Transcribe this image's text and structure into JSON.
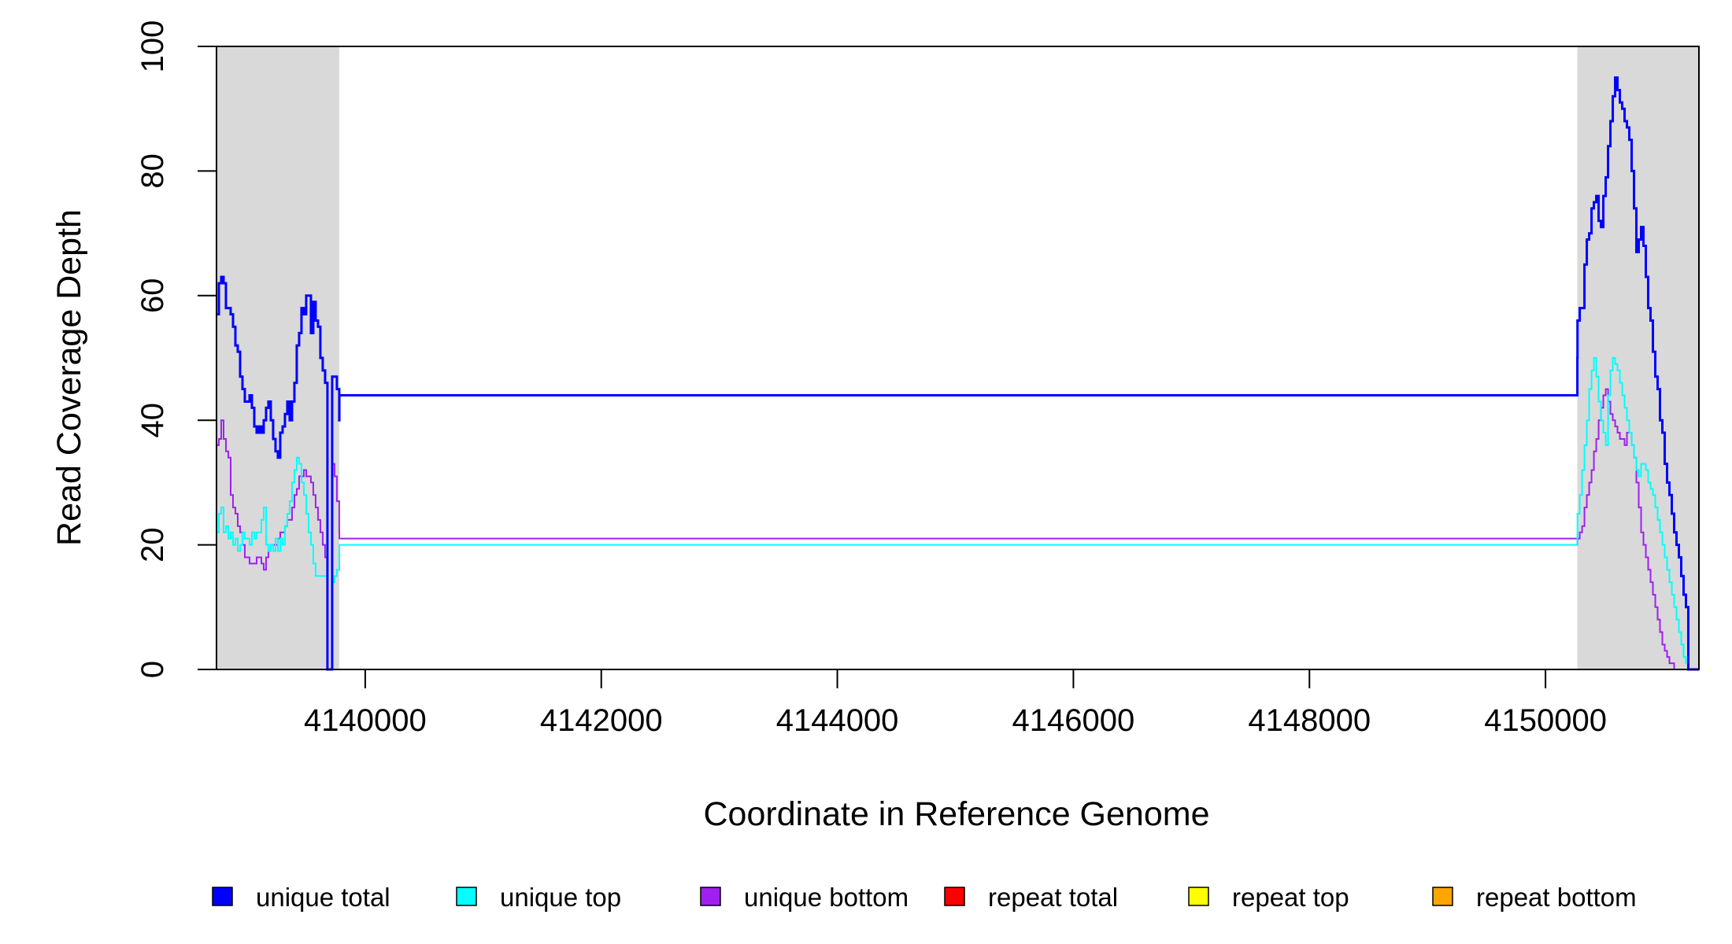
{
  "chart_data": {
    "type": "line",
    "xlabel": "Coordinate in Reference Genome",
    "ylabel": "Read Coverage Depth",
    "xlim": [
      4138740,
      4151300
    ],
    "ylim": [
      0,
      100
    ],
    "x_ticks": [
      4140000,
      4142000,
      4144000,
      4146000,
      4148000,
      4150000
    ],
    "y_ticks": [
      0,
      20,
      40,
      60,
      80,
      100
    ],
    "grid": false,
    "legend_position": "bottom",
    "shaded_regions": [
      {
        "x_start": 4138740,
        "x_end": 4139780,
        "color": "#d9d9d9"
      },
      {
        "x_start": 4150270,
        "x_end": 4151300,
        "color": "#d9d9d9"
      }
    ],
    "legend": [
      {
        "label": "unique total",
        "color": "#0000ff"
      },
      {
        "label": "unique top",
        "color": "#00ffff"
      },
      {
        "label": "unique bottom",
        "color": "#a020f0"
      },
      {
        "label": "repeat total",
        "color": "#ff0000"
      },
      {
        "label": "repeat top",
        "color": "#ffff00"
      },
      {
        "label": "repeat bottom",
        "color": "#ffa500"
      }
    ],
    "series": [
      {
        "name": "unique total",
        "color": "#0000ff",
        "style": "step",
        "width": 3,
        "x": [
          4138740,
          4138760,
          4138780,
          4138800,
          4138820,
          4138840,
          4138860,
          4138880,
          4138900,
          4138920,
          4138940,
          4138960,
          4138980,
          4139000,
          4139020,
          4139040,
          4139060,
          4139080,
          4139100,
          4139120,
          4139140,
          4139160,
          4139180,
          4139200,
          4139220,
          4139240,
          4139260,
          4139280,
          4139300,
          4139320,
          4139340,
          4139360,
          4139380,
          4139400,
          4139420,
          4139440,
          4139460,
          4139480,
          4139500,
          4139520,
          4139540,
          4139560,
          4139580,
          4139600,
          4139620,
          4139640,
          4139660,
          4139680,
          4139700,
          4139720,
          4139740,
          4139760,
          4139780,
          4139781,
          4150270,
          4150271,
          4150290,
          4150310,
          4150330,
          4150350,
          4150370,
          4150390,
          4150410,
          4150430,
          4150450,
          4150470,
          4150490,
          4150510,
          4150530,
          4150550,
          4150570,
          4150590,
          4150610,
          4150630,
          4150650,
          4150670,
          4150690,
          4150710,
          4150730,
          4150750,
          4150770,
          4150790,
          4150810,
          4150830,
          4150850,
          4150870,
          4150890,
          4150910,
          4150930,
          4150950,
          4150970,
          4150990,
          4151010,
          4151030,
          4151050,
          4151070,
          4151090,
          4151110,
          4151130,
          4151150,
          4151170,
          4151190,
          4151210,
          4151230,
          4151250,
          4151270,
          4151290,
          4151300
        ],
        "y": [
          57,
          62,
          63,
          62,
          58,
          58,
          57,
          55,
          52,
          51,
          47,
          45,
          43,
          43,
          44,
          42,
          39,
          38,
          39,
          38,
          40,
          42,
          43,
          40,
          37,
          35,
          34,
          38,
          39,
          41,
          43,
          40,
          43,
          46,
          52,
          54,
          58,
          57,
          60,
          60,
          54,
          59,
          56,
          55,
          50,
          48,
          46,
          0,
          0,
          47,
          47,
          45,
          40,
          44,
          50,
          56,
          58,
          58,
          65,
          69,
          70,
          74,
          75,
          76,
          72,
          71,
          76,
          79,
          84,
          88,
          92,
          95,
          93,
          91,
          90,
          88,
          87,
          85,
          80,
          74,
          67,
          69,
          71,
          68,
          63,
          58,
          56,
          51,
          47,
          45,
          40,
          38,
          33,
          30,
          28,
          25,
          22,
          20,
          18,
          15,
          12,
          10,
          0,
          0,
          0,
          0,
          0,
          0
        ],
        "values_note": ""
      },
      {
        "name": "unique top",
        "color": "#00ffff",
        "style": "step",
        "width": 2,
        "x": [
          4138740,
          4138760,
          4138780,
          4138800,
          4138820,
          4138840,
          4138860,
          4138880,
          4138900,
          4138920,
          4138940,
          4138960,
          4138980,
          4139000,
          4139020,
          4139040,
          4139060,
          4139080,
          4139100,
          4139120,
          4139140,
          4139160,
          4139180,
          4139200,
          4139220,
          4139240,
          4139260,
          4139280,
          4139300,
          4139320,
          4139340,
          4139360,
          4139380,
          4139400,
          4139420,
          4139440,
          4139460,
          4139480,
          4139500,
          4139520,
          4139540,
          4139560,
          4139580,
          4139600,
          4139620,
          4139640,
          4139660,
          4139680,
          4139700,
          4139720,
          4139740,
          4139760,
          4139780,
          4139781,
          4150270,
          4150271,
          4150290,
          4150310,
          4150330,
          4150350,
          4150370,
          4150390,
          4150410,
          4150430,
          4150450,
          4150470,
          4150490,
          4150510,
          4150530,
          4150550,
          4150570,
          4150590,
          4150610,
          4150630,
          4150650,
          4150670,
          4150690,
          4150710,
          4150730,
          4150750,
          4150770,
          4150790,
          4150810,
          4150830,
          4150850,
          4150870,
          4150890,
          4150910,
          4150930,
          4150950,
          4150970,
          4150990,
          4151010,
          4151030,
          4151050,
          4151070,
          4151090,
          4151110,
          4151130,
          4151150,
          4151170,
          4151190,
          4151210,
          4151230,
          4151250,
          4151270,
          4151290,
          4151300
        ],
        "y": [
          22,
          25,
          26,
          22,
          23,
          21,
          22,
          20,
          21,
          19,
          20,
          22,
          21,
          21,
          20,
          22,
          21,
          22,
          22,
          24,
          26,
          20,
          19,
          20,
          19,
          21,
          19,
          21,
          20,
          23,
          25,
          27,
          30,
          32,
          34,
          33,
          30,
          28,
          25,
          22,
          20,
          17,
          15,
          15,
          15,
          15,
          15,
          0,
          0,
          14,
          15,
          16,
          18,
          20,
          22,
          25,
          28,
          32,
          36,
          40,
          45,
          48,
          50,
          47,
          43,
          40,
          38,
          36,
          44,
          48,
          50,
          49,
          48,
          46,
          44,
          42,
          40,
          38,
          36,
          34,
          32,
          31,
          33,
          33,
          32,
          30,
          29,
          28,
          26,
          24,
          22,
          20,
          18,
          16,
          14,
          12,
          10,
          8,
          6,
          4,
          2,
          1,
          0,
          0,
          0,
          0,
          0,
          0
        ],
        "values_note": ""
      },
      {
        "name": "unique bottom",
        "color": "#a020f0",
        "style": "step",
        "width": 2,
        "x": [
          4138740,
          4138760,
          4138780,
          4138800,
          4138820,
          4138840,
          4138860,
          4138880,
          4138900,
          4138920,
          4138940,
          4138960,
          4138980,
          4139000,
          4139020,
          4139040,
          4139060,
          4139080,
          4139100,
          4139120,
          4139140,
          4139160,
          4139180,
          4139200,
          4139220,
          4139240,
          4139260,
          4139280,
          4139300,
          4139320,
          4139340,
          4139360,
          4139380,
          4139400,
          4139420,
          4139440,
          4139460,
          4139480,
          4139500,
          4139520,
          4139540,
          4139560,
          4139580,
          4139600,
          4139620,
          4139640,
          4139660,
          4139680,
          4139700,
          4139720,
          4139740,
          4139760,
          4139780,
          4139781,
          4150270,
          4150271,
          4150290,
          4150310,
          4150330,
          4150350,
          4150370,
          4150390,
          4150410,
          4150430,
          4150450,
          4150470,
          4150490,
          4150510,
          4150530,
          4150550,
          4150570,
          4150590,
          4150610,
          4150630,
          4150650,
          4150670,
          4150690,
          4150710,
          4150730,
          4150750,
          4150770,
          4150790,
          4150810,
          4150830,
          4150850,
          4150870,
          4150890,
          4150910,
          4150930,
          4150950,
          4150970,
          4150990,
          4151010,
          4151030,
          4151050,
          4151070,
          4151090,
          4151110,
          4151130,
          4151150,
          4151170,
          4151190,
          4151210,
          4151230,
          4151250,
          4151270,
          4151290,
          4151300
        ],
        "y": [
          36,
          37,
          40,
          37,
          35,
          34,
          28,
          26,
          25,
          23,
          22,
          20,
          18,
          18,
          17,
          17,
          17,
          18,
          18,
          17,
          16,
          18,
          19,
          20,
          20,
          20,
          21,
          22,
          22,
          23,
          24,
          24,
          26,
          28,
          29,
          31,
          31,
          32,
          31,
          31,
          30,
          28,
          26,
          24,
          22,
          20,
          18,
          0,
          0,
          33,
          31,
          27,
          22,
          21,
          20,
          21,
          22,
          23,
          26,
          28,
          30,
          32,
          35,
          37,
          40,
          42,
          44,
          45,
          43,
          41,
          40,
          39,
          38,
          37,
          37,
          36,
          38,
          38,
          36,
          34,
          30,
          26,
          22,
          20,
          18,
          16,
          14,
          12,
          10,
          8,
          6,
          4,
          3,
          2,
          1,
          1,
          0,
          0,
          0,
          0,
          0,
          0,
          0,
          0,
          0,
          0,
          0,
          0
        ],
        "values_note": ""
      },
      {
        "name": "repeat total",
        "color": "#ff0000",
        "style": "line",
        "width": 2,
        "x": [
          4138740,
          4151300
        ],
        "y": [
          0,
          0
        ]
      },
      {
        "name": "repeat top",
        "color": "#ffff00",
        "style": "line",
        "width": 2,
        "x": [
          4138740,
          4151300
        ],
        "y": [
          0,
          0
        ]
      },
      {
        "name": "repeat bottom",
        "color": "#ffa500",
        "style": "line",
        "width": 2,
        "x": [
          4138740,
          4151300
        ],
        "y": [
          0,
          0
        ]
      }
    ]
  }
}
